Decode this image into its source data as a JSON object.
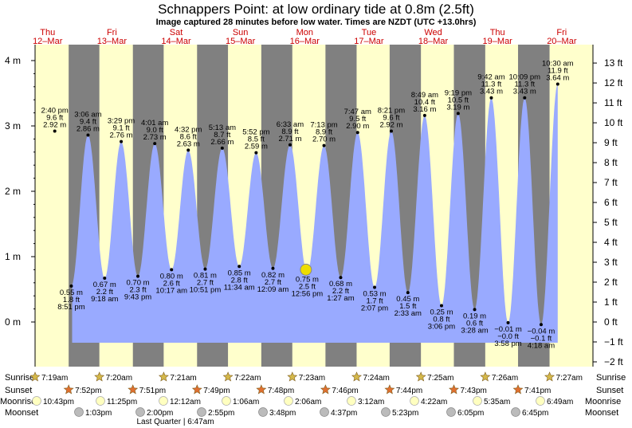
{
  "title": "Schnappers Point: at low  ordinary tide at 0.8m (2.5ft)",
  "subtitle": "Image captured 28 minutes before low water. Times are NZDT (UTC +13.0hrs)",
  "colors": {
    "night": "#808080",
    "day": "#ffffcc",
    "water": "#99aaff",
    "day_label": "#cc0000",
    "sunrise_star": "#d4b84a",
    "sunset_star": "#e07030",
    "moon": "#ffffc0",
    "moonset": "#bbbbbb",
    "now_marker": "#eedd00"
  },
  "days": [
    {
      "dow": "Thu",
      "date": "12–Mar"
    },
    {
      "dow": "Fri",
      "date": "13–Mar"
    },
    {
      "dow": "Sat",
      "date": "14–Mar"
    },
    {
      "dow": "Sun",
      "date": "15–Mar"
    },
    {
      "dow": "Mon",
      "date": "16–Mar"
    },
    {
      "dow": "Tue",
      "date": "17–Mar"
    },
    {
      "dow": "Wed",
      "date": "18–Mar"
    },
    {
      "dow": "Thu",
      "date": "19–Mar"
    },
    {
      "dow": "Fri",
      "date": "20–Mar"
    }
  ],
  "chart_data": {
    "type": "area",
    "ylabel_left_unit": "m",
    "ylabel_right_unit": "ft",
    "y_ticks_m": [
      "0 m",
      "1 m",
      "2 m",
      "3 m",
      "4 m"
    ],
    "y_ticks_ft": [
      "−2 ft",
      "−1 ft",
      "0 ft",
      "1 ft",
      "2 ft",
      "3 ft",
      "4 ft",
      "5 ft",
      "6 ft",
      "7 ft",
      "8 ft",
      "9 ft",
      "10 ft",
      "11 ft",
      "12 ft",
      "13 ft"
    ],
    "tides": [
      {
        "type": "high",
        "time": "2:40 pm",
        "ft": "9.6 ft",
        "m": "2.92 m",
        "h": 2.92,
        "t": 14.67
      },
      {
        "type": "low",
        "time": "8:51 pm",
        "ft": "1.8 ft",
        "m": "0.55 m",
        "h": 0.55,
        "t": 20.85
      },
      {
        "type": "high",
        "time": "3:06 am",
        "ft": "9.4 ft",
        "m": "2.86 m",
        "h": 2.86,
        "t": 27.1
      },
      {
        "type": "low",
        "time": "9:18 am",
        "ft": "2.2 ft",
        "m": "0.67 m",
        "h": 0.67,
        "t": 33.3
      },
      {
        "type": "high",
        "time": "3:29 pm",
        "ft": "9.1 ft",
        "m": "2.76 m",
        "h": 2.76,
        "t": 39.48
      },
      {
        "type": "low",
        "time": "9:43 pm",
        "ft": "2.3 ft",
        "m": "0.70 m",
        "h": 0.7,
        "t": 45.72
      },
      {
        "type": "high",
        "time": "4:01 am",
        "ft": "9.0 ft",
        "m": "2.73 m",
        "h": 2.73,
        "t": 52.02
      },
      {
        "type": "low",
        "time": "10:17 am",
        "ft": "2.6 ft",
        "m": "0.80 m",
        "h": 0.8,
        "t": 58.28
      },
      {
        "type": "high",
        "time": "4:32 pm",
        "ft": "8.6 ft",
        "m": "2.63 m",
        "h": 2.63,
        "t": 64.53
      },
      {
        "type": "low",
        "time": "10:51 pm",
        "ft": "2.7 ft",
        "m": "0.81 m",
        "h": 0.81,
        "t": 70.85
      },
      {
        "type": "high",
        "time": "5:13 am",
        "ft": "8.7 ft",
        "m": "2.66 m",
        "h": 2.66,
        "t": 77.22
      },
      {
        "type": "low",
        "time": "11:34 am",
        "ft": "2.8 ft",
        "m": "0.85 m",
        "h": 0.85,
        "t": 83.57
      },
      {
        "type": "high",
        "time": "5:52 pm",
        "ft": "8.5 ft",
        "m": "2.59 m",
        "h": 2.59,
        "t": 89.87
      },
      {
        "type": "low",
        "time": "12:09 am",
        "ft": "2.7 ft",
        "m": "0.82 m",
        "h": 0.82,
        "t": 96.15
      },
      {
        "type": "high",
        "time": "6:33 am",
        "ft": "8.9 ft",
        "m": "2.71 m",
        "h": 2.71,
        "t": 102.55
      },
      {
        "type": "low",
        "time": "12:56 pm",
        "ft": "2.5 ft",
        "m": "0.75 m",
        "h": 0.75,
        "t": 108.93
      },
      {
        "type": "high",
        "time": "7:13 pm",
        "ft": "8.9 ft",
        "m": "2.70 m",
        "h": 2.7,
        "t": 115.22
      },
      {
        "type": "low",
        "time": "1:27 am",
        "ft": "2.2 ft",
        "m": "0.68 m",
        "h": 0.68,
        "t": 121.45
      },
      {
        "type": "high",
        "time": "7:47 am",
        "ft": "9.5 ft",
        "m": "2.90 m",
        "h": 2.9,
        "t": 127.78
      },
      {
        "type": "low",
        "time": "2:07 pm",
        "ft": "1.7 ft",
        "m": "0.53 m",
        "h": 0.53,
        "t": 134.12
      },
      {
        "type": "high",
        "time": "8:21 pm",
        "ft": "9.6 ft",
        "m": "2.92 m",
        "h": 2.92,
        "t": 140.35
      },
      {
        "type": "low",
        "time": "2:33 am",
        "ft": "1.5 ft",
        "m": "0.45 m",
        "h": 0.45,
        "t": 146.55
      },
      {
        "type": "high",
        "time": "8:49 am",
        "ft": "10.4 ft",
        "m": "3.16 m",
        "h": 3.16,
        "t": 152.82
      },
      {
        "type": "low",
        "time": "3:06 pm",
        "ft": "0.8 ft",
        "m": "0.25 m",
        "h": 0.25,
        "t": 159.1
      },
      {
        "type": "high",
        "time": "9:19 pm",
        "ft": "10.5 ft",
        "m": "3.19 m",
        "h": 3.19,
        "t": 165.32
      },
      {
        "type": "low",
        "time": "3:28 am",
        "ft": "0.6 ft",
        "m": "0.19 m",
        "h": 0.19,
        "t": 171.47
      },
      {
        "type": "high",
        "time": "9:42 am",
        "ft": "11.3 ft",
        "m": "3.43 m",
        "h": 3.43,
        "t": 177.7
      },
      {
        "type": "low",
        "time": "3:58 pm",
        "ft": "−0.0 ft",
        "m": "−0.01 m",
        "h": -0.01,
        "t": 183.97
      },
      {
        "type": "high",
        "time": "10:09 pm",
        "ft": "11.3 ft",
        "m": "3.43 m",
        "h": 3.43,
        "t": 190.15
      },
      {
        "type": "low",
        "time": "4:18 am",
        "ft": "−0.1 ft",
        "m": "−0.04 m",
        "h": -0.04,
        "t": 196.3
      },
      {
        "type": "high",
        "time": "10:30 am",
        "ft": "11.9 ft",
        "m": "3.64 m",
        "h": 3.64,
        "t": 202.5
      }
    ],
    "now_marker": {
      "t": 108.47,
      "h": 0.8
    }
  },
  "rows": {
    "sunrise_label": "Sunrise",
    "sunset_label": "Sunset",
    "moonrise_label": "Moonrise",
    "moonset_label": "Moonset",
    "sunrise": [
      "7:19am",
      "7:20am",
      "7:21am",
      "7:22am",
      "7:23am",
      "7:24am",
      "7:25am",
      "7:26am",
      "7:27am"
    ],
    "sunset": [
      "7:52pm",
      "7:51pm",
      "7:49pm",
      "7:48pm",
      "7:46pm",
      "7:44pm",
      "7:43pm",
      "7:41pm"
    ],
    "moonrise": [
      "10:43pm",
      "11:25pm",
      "12:12am",
      "1:06am",
      "2:06am",
      "3:12am",
      "4:22am",
      "5:35am",
      "6:49am"
    ],
    "moonset": [
      "1:03pm",
      "2:00pm",
      "2:55pm",
      "3:48pm",
      "4:37pm",
      "5:23pm",
      "6:05pm",
      "6:45pm"
    ],
    "moon_phase_note": "Last Quarter | 6:47am"
  }
}
